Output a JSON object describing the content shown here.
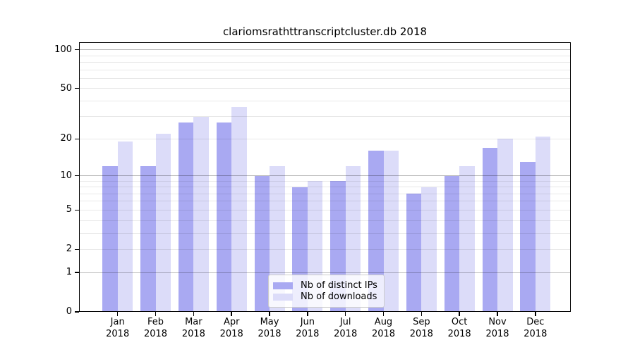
{
  "title": "clariomsrathttranscriptcluster.db 2018",
  "chart_data": {
    "type": "bar",
    "title": "clariomsrathttranscriptcluster.db 2018",
    "categories": [
      "Jan 2018",
      "Feb 2018",
      "Mar 2018",
      "Apr 2018",
      "May 2018",
      "Jun 2018",
      "Jul 2018",
      "Aug 2018",
      "Sep 2018",
      "Oct 2018",
      "Nov 2018",
      "Dec 2018"
    ],
    "month_labels": [
      "Jan",
      "Feb",
      "Mar",
      "Apr",
      "May",
      "Jun",
      "Jul",
      "Aug",
      "Sep",
      "Oct",
      "Nov",
      "Dec"
    ],
    "year_label": "2018",
    "series": [
      {
        "name": "Nb of distinct IPs",
        "color": "#a9a9f2",
        "values": [
          12,
          12,
          27,
          27,
          10,
          8,
          9,
          16,
          7,
          10,
          17,
          13
        ]
      },
      {
        "name": "Nb of downloads",
        "color": "#dcdcf9",
        "values": [
          19,
          22,
          30,
          36,
          12,
          9,
          12,
          16,
          8,
          12,
          20,
          21
        ]
      }
    ],
    "yscale": "log1p",
    "ylim": [
      0,
      114
    ],
    "ytick_values": [
      0,
      1,
      2,
      5,
      10,
      20,
      50,
      100
    ],
    "ytick_labels": [
      "0",
      "1",
      "2",
      "5",
      "10",
      "20",
      "50",
      "100"
    ],
    "major_grid_values": [
      1,
      10,
      100
    ],
    "minor_grid_values": [
      3,
      4,
      6,
      7,
      8,
      9,
      30,
      40,
      60,
      70,
      80,
      90
    ],
    "grid": "horizontal",
    "legend_position": "inside-bottom-center",
    "xlabel": "",
    "ylabel": ""
  },
  "legend": {
    "items": [
      {
        "label": "Nb of distinct IPs",
        "color": "#a9a9f2"
      },
      {
        "label": "Nb of downloads",
        "color": "#dcdcf9"
      }
    ]
  },
  "colors": {
    "background": "#ffffff",
    "axis": "#000000",
    "text": "#000000",
    "major_grid": "rgba(0,0,0,0.28)",
    "minor_grid": "rgba(0,0,0,0.09)"
  }
}
